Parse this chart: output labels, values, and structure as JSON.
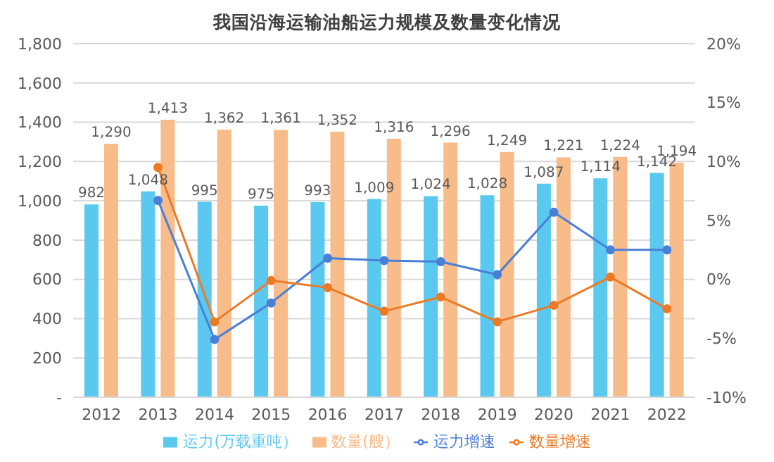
{
  "chart_data": {
    "type": "bar",
    "title": "我国沿海运输油船运力规模及数量变化情况",
    "categories": [
      "2012",
      "2013",
      "2014",
      "2015",
      "2016",
      "2017",
      "2018",
      "2019",
      "2020",
      "2021",
      "2022"
    ],
    "series": [
      {
        "name": "运力(万载重吨）",
        "color": "#5bc8f0",
        "values": [
          982,
          1048,
          995,
          975,
          993,
          1009,
          1024,
          1028,
          1087,
          1114,
          1142
        ],
        "value_labels": [
          "982",
          "1,048",
          "995",
          "975",
          "993",
          "1,009",
          "1,024",
          "1,028",
          "1,087",
          "1,114",
          "1,142"
        ]
      },
      {
        "name": "数量(艘）",
        "color": "#f8bb8a",
        "values": [
          1290,
          1413,
          1362,
          1361,
          1352,
          1316,
          1296,
          1249,
          1221,
          1224,
          1194
        ],
        "value_labels": [
          "1,290",
          "1,413",
          "1,362",
          "1,361",
          "1,352",
          "1,316",
          "1,296",
          "1,249",
          "1,221",
          "1,224",
          "1,194"
        ]
      },
      {
        "name": "运力增速",
        "type": "line",
        "axis": "y2",
        "color": "#4a7fd6",
        "values": [
          null,
          6.7,
          -5.1,
          -2.0,
          1.8,
          1.6,
          1.5,
          0.4,
          5.7,
          2.5,
          2.5
        ]
      },
      {
        "name": "数量增速",
        "type": "line",
        "axis": "y2",
        "color": "#ec7a24",
        "values": [
          null,
          9.5,
          -3.6,
          -0.1,
          -0.7,
          -2.7,
          -1.5,
          -3.6,
          -2.2,
          0.2,
          -2.5
        ]
      }
    ],
    "ylim": [
      0,
      1800
    ],
    "yticks": [
      {
        "value": 0,
        "label": "-"
      },
      {
        "value": 200,
        "label": "200"
      },
      {
        "value": 400,
        "label": "400"
      },
      {
        "value": 600,
        "label": "600"
      },
      {
        "value": 800,
        "label": "800"
      },
      {
        "value": 1000,
        "label": "1,000"
      },
      {
        "value": 1200,
        "label": "1,200"
      },
      {
        "value": 1400,
        "label": "1,400"
      },
      {
        "value": 1600,
        "label": "1,600"
      },
      {
        "value": 1800,
        "label": "1,800"
      }
    ],
    "y2lim": [
      -10,
      20
    ],
    "y2ticks": [
      {
        "value": -10,
        "label": "-10%"
      },
      {
        "value": -5,
        "label": "-5%"
      },
      {
        "value": 0,
        "label": "0%"
      },
      {
        "value": 5,
        "label": "5%"
      },
      {
        "value": 10,
        "label": "10%"
      },
      {
        "value": 15,
        "label": "15%"
      },
      {
        "value": 20,
        "label": "20%"
      }
    ],
    "grid": "y",
    "legend": "bottom",
    "marker": "circle",
    "line_style": "solid"
  }
}
